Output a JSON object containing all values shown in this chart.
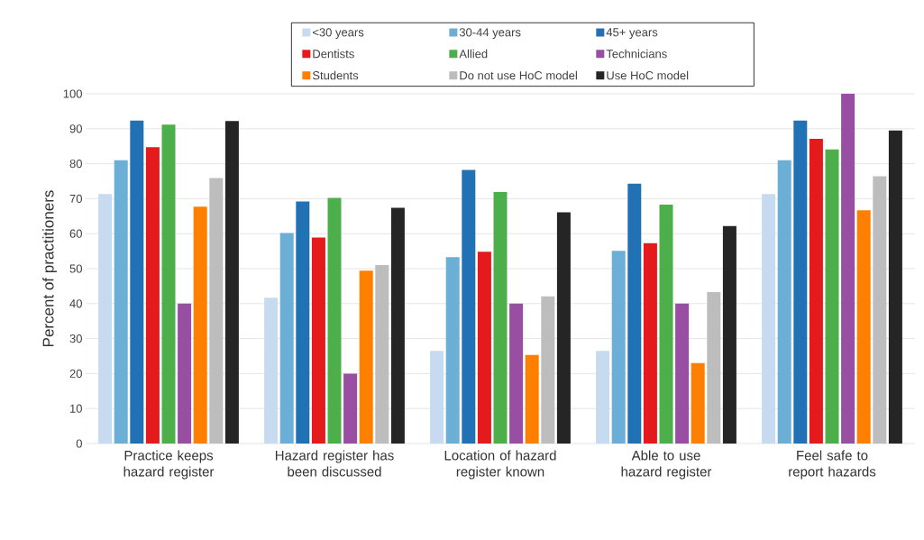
{
  "chart_data": {
    "type": "bar",
    "ylabel": "Percent of practitioners",
    "categories": [
      "Practice keeps hazard register",
      "Hazard register has been discussed",
      "Location of hazard register known",
      "Able to use hazard register",
      "Feel safe to report hazards"
    ],
    "series": [
      {
        "name": "<30 years",
        "color": "#c6dbef",
        "values": [
          71.3,
          41.7,
          26.5,
          26.5,
          71.3
        ]
      },
      {
        "name": "30-44 years",
        "color": "#6baed6",
        "values": [
          81,
          60.2,
          53.3,
          55.1,
          81
        ]
      },
      {
        "name": "45+ years",
        "color": "#2171b5",
        "values": [
          92.3,
          69.2,
          78.2,
          74.3,
          92.3
        ]
      },
      {
        "name": "Dentists",
        "color": "#e41a1c",
        "values": [
          84.7,
          58.9,
          54.8,
          57.3,
          87.1
        ]
      },
      {
        "name": "Allied",
        "color": "#4daf4a",
        "values": [
          91.2,
          70.2,
          71.9,
          68.3,
          84.1
        ]
      },
      {
        "name": "Technicians",
        "color": "#984ea3",
        "values": [
          40,
          20,
          40,
          40,
          100
        ]
      },
      {
        "name": "Students",
        "color": "#ff7f00",
        "values": [
          67.7,
          49.4,
          25.3,
          23,
          66.7
        ]
      },
      {
        "name": "Do not use HoC model",
        "color": "#bdbdbd",
        "values": [
          75.9,
          51,
          42.1,
          43.3,
          76.4
        ]
      },
      {
        "name": "Use HoC model",
        "color": "#252525",
        "values": [
          92.2,
          67.4,
          66.1,
          62.2,
          89.5
        ]
      }
    ],
    "ylim": [
      0,
      100
    ],
    "yticks": [
      0,
      10,
      20,
      30,
      40,
      50,
      60,
      70,
      80,
      90,
      100
    ],
    "grid": "y",
    "legend": "top"
  }
}
